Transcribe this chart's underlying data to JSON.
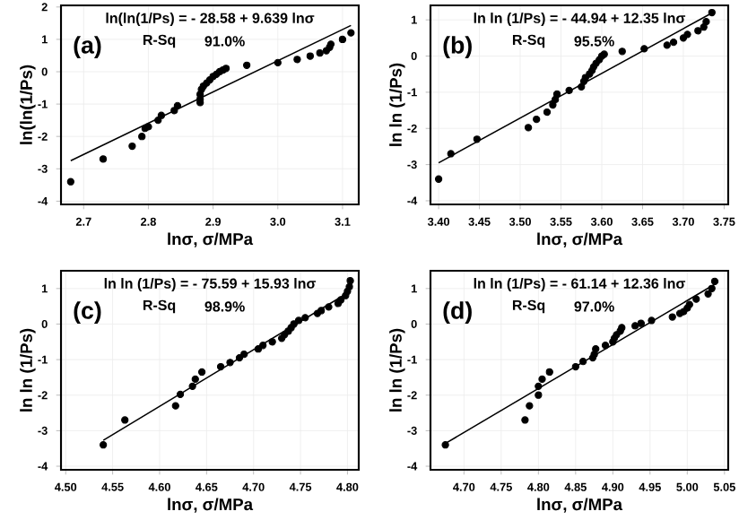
{
  "chart_data": [
    {
      "type": "scatter",
      "marker": "circle",
      "xlabel": "lnσ, σ/MPa",
      "ylabel": "ln(ln(1/Ps)",
      "xlim": [
        2.665,
        3.125
      ],
      "ylim": [
        -4.1,
        2.05
      ],
      "xticks": [
        2.7,
        2.8,
        2.9,
        {
          "value": 3,
          "label": "3.0"
        },
        3.1
      ],
      "yticks": [
        -4,
        -3,
        -2,
        -1,
        0,
        1,
        2
      ],
      "grid": true,
      "annotations": [
        "ln(ln(1/Ps) = - 28.58 + 9.639 lnσ",
        "(a)",
        "R-Sq",
        "91.0%"
      ],
      "series": [
        {
          "color": "#000000",
          "x": [
            2.68,
            2.73,
            2.775,
            2.79,
            2.795,
            2.8,
            2.815,
            2.82,
            2.84,
            2.845,
            2.88,
            2.88,
            2.88,
            2.882,
            2.885,
            2.89,
            2.895,
            2.9,
            2.905,
            2.91,
            2.915,
            2.92,
            2.952,
            3.0,
            3.03,
            3.05,
            3.065,
            3.075,
            3.08,
            3.082,
            3.1,
            3.113
          ],
          "values": [
            -3.4,
            -2.7,
            -2.3,
            -2.0,
            -1.75,
            -1.7,
            -1.5,
            -1.35,
            -1.2,
            -1.05,
            -0.95,
            -0.85,
            -0.7,
            -0.55,
            -0.45,
            -0.35,
            -0.25,
            -0.15,
            -0.08,
            0.0,
            0.05,
            0.1,
            0.2,
            0.28,
            0.38,
            0.48,
            0.58,
            0.65,
            0.75,
            0.85,
            1.0,
            1.2
          ]
        },
        {
          "type": "line",
          "marker": "none",
          "color": "#000000",
          "x": [
            2.68,
            3.113
          ],
          "values": [
            -2.75,
            1.43
          ]
        }
      ]
    },
    {
      "type": "scatter",
      "xlabel": "lnσ, σ/MPa",
      "ylabel": "ln ln (1/Ps)",
      "marker": "circle",
      "xlim": [
        3.39,
        3.755
      ],
      "ylim": [
        -4.1,
        1.4
      ],
      "xticks": [
        {
          "value": 3.4,
          "label": "3.40"
        },
        3.45,
        {
          "value": 3.5,
          "label": "3.50"
        },
        3.55,
        {
          "value": 3.6,
          "label": "3.60"
        },
        3.65,
        {
          "value": 3.7,
          "label": "3.70"
        },
        3.75
      ],
      "yticks": [
        -4,
        -3,
        -2,
        -1,
        0,
        1
      ],
      "grid": true,
      "annotations": [
        "ln ln (1/Ps) = - 44.94 + 12.35 lnσ",
        "(b)",
        "R-Sq",
        "95.5%"
      ],
      "series": [
        {
          "color": "#000000",
          "x": [
            3.4,
            3.415,
            3.447,
            3.51,
            3.52,
            3.533,
            3.54,
            3.543,
            3.545,
            3.56,
            3.575,
            3.578,
            3.58,
            3.585,
            3.588,
            3.59,
            3.593,
            3.597,
            3.6,
            3.603,
            3.625,
            3.652,
            3.68,
            3.688,
            3.7,
            3.705,
            3.718,
            3.725,
            3.728,
            3.735
          ],
          "values": [
            -3.4,
            -2.7,
            -2.3,
            -1.98,
            -1.75,
            -1.55,
            -1.35,
            -1.2,
            -1.05,
            -0.95,
            -0.85,
            -0.7,
            -0.6,
            -0.5,
            -0.4,
            -0.3,
            -0.2,
            -0.1,
            0.0,
            0.05,
            0.13,
            0.2,
            0.3,
            0.38,
            0.5,
            0.6,
            0.7,
            0.8,
            0.95,
            1.2
          ]
        },
        {
          "type": "line",
          "marker": "none",
          "color": "#000000",
          "x": [
            3.4,
            3.735
          ],
          "values": [
            -2.95,
            1.19
          ]
        }
      ]
    },
    {
      "type": "scatter",
      "xlabel": "lnσ, σ/MPa",
      "ylabel": "ln ln (1/Ps)",
      "marker": "circle",
      "xlim": [
        4.495,
        4.812
      ],
      "ylim": [
        -4.1,
        1.5
      ],
      "xticks": [
        {
          "value": 4.5,
          "label": "4.50"
        },
        4.55,
        {
          "value": 4.6,
          "label": "4.60"
        },
        4.65,
        {
          "value": 4.7,
          "label": "4.70"
        },
        4.75,
        {
          "value": 4.8,
          "label": "4.80"
        }
      ],
      "yticks": [
        -4,
        -3,
        -2,
        -1,
        0,
        1
      ],
      "grid": true,
      "annotations": [
        "ln ln (1/Ps) = - 75.59 + 15.93 lnσ",
        "(c)",
        "R-Sq",
        "98.9%"
      ],
      "series": [
        {
          "color": "#000000",
          "x": [
            4.54,
            4.563,
            4.617,
            4.622,
            4.635,
            4.638,
            4.645,
            4.665,
            4.675,
            4.685,
            4.69,
            4.705,
            4.71,
            4.72,
            4.73,
            4.733,
            4.737,
            4.74,
            4.743,
            4.748,
            4.755,
            4.768,
            4.772,
            4.78,
            4.79,
            4.793,
            4.798,
            4.8,
            4.802,
            4.803
          ],
          "values": [
            -3.4,
            -2.7,
            -2.3,
            -1.98,
            -1.75,
            -1.55,
            -1.35,
            -1.2,
            -1.08,
            -0.95,
            -0.85,
            -0.7,
            -0.6,
            -0.5,
            -0.4,
            -0.3,
            -0.2,
            -0.1,
            0.0,
            0.1,
            0.18,
            0.3,
            0.38,
            0.48,
            0.58,
            0.68,
            0.8,
            0.92,
            1.05,
            1.22
          ]
        },
        {
          "type": "line",
          "marker": "none",
          "color": "#000000",
          "x": [
            4.54,
            4.803
          ],
          "values": [
            -3.27,
            0.92
          ]
        }
      ]
    },
    {
      "type": "scatter",
      "xlabel": "lnσ, σ/MPa",
      "ylabel": "ln ln (1/Ps)",
      "marker": "circle",
      "xlim": [
        4.655,
        5.055
      ],
      "ylim": [
        -4.1,
        1.5
      ],
      "xticks": [
        {
          "value": 4.7,
          "label": "4.70"
        },
        4.75,
        {
          "value": 4.8,
          "label": "4.80"
        },
        4.85,
        {
          "value": 4.9,
          "label": "4.90"
        },
        4.95,
        {
          "value": 5.0,
          "label": "5.00"
        },
        5.05
      ],
      "yticks": [
        -4,
        -3,
        -2,
        -1,
        0,
        1
      ],
      "grid": true,
      "annotations": [
        "ln ln (1/Ps) = - 61.14 + 12.36 lnσ",
        "(d)",
        "R-Sq",
        "97.0%"
      ],
      "series": [
        {
          "color": "#000000",
          "x": [
            4.675,
            4.782,
            4.788,
            4.8,
            4.8,
            4.805,
            4.815,
            4.85,
            4.86,
            4.873,
            4.875,
            4.877,
            4.89,
            4.9,
            4.902,
            4.905,
            4.91,
            4.912,
            4.93,
            4.938,
            4.952,
            4.98,
            4.99,
            4.995,
            5.0,
            5.003,
            5.012,
            5.028,
            5.033,
            5.037
          ],
          "values": [
            -3.4,
            -2.7,
            -2.3,
            -2.0,
            -1.75,
            -1.55,
            -1.35,
            -1.2,
            -1.05,
            -0.95,
            -0.85,
            -0.7,
            -0.6,
            -0.5,
            -0.4,
            -0.3,
            -0.2,
            -0.1,
            -0.05,
            0.02,
            0.1,
            0.2,
            0.3,
            0.35,
            0.45,
            0.55,
            0.7,
            0.85,
            1.0,
            1.2
          ]
        },
        {
          "type": "line",
          "marker": "none",
          "color": "#000000",
          "x": [
            4.675,
            5.037
          ],
          "values": [
            -3.36,
            1.12
          ]
        }
      ]
    }
  ]
}
